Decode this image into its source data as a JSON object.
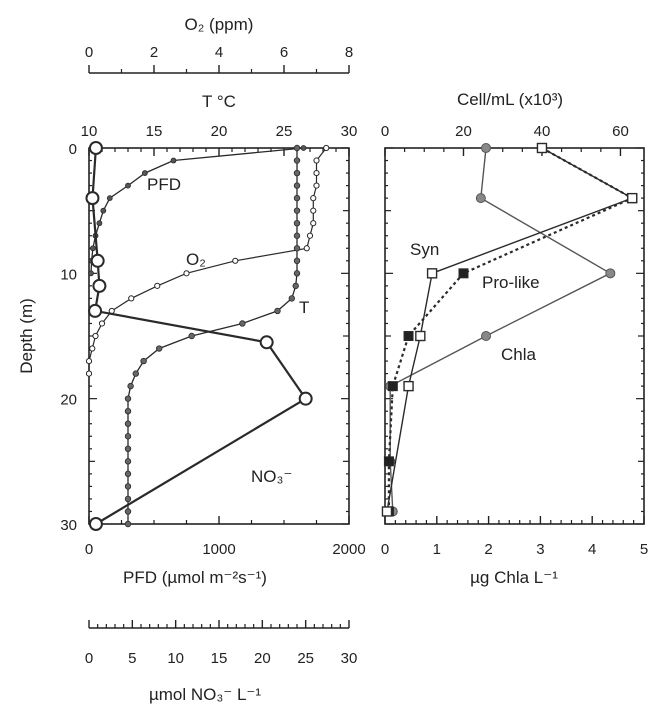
{
  "left_panel": {
    "axis_o2": {
      "label": "O₂ (ppm)",
      "ticks": [
        "0",
        "2",
        "4",
        "6",
        "8"
      ],
      "range": [
        0,
        8
      ]
    },
    "axis_t": {
      "label": "T °C",
      "ticks": [
        "10",
        "15",
        "20",
        "25",
        "30"
      ],
      "range": [
        10,
        30
      ]
    },
    "axis_pfd": {
      "label": "PFD (µmol m⁻²s⁻¹)",
      "ticks": [
        "0",
        "1000",
        "2000"
      ],
      "range": [
        0,
        2000
      ]
    },
    "axis_no3": {
      "label": "µmol NO₃⁻ L⁻¹",
      "ticks": [
        "0",
        "5",
        "10",
        "15",
        "20",
        "25",
        "30"
      ],
      "range": [
        0,
        30
      ]
    },
    "axis_depth": {
      "label": "Depth (m)",
      "ticks": [
        "0",
        "10",
        "20",
        "30"
      ],
      "range": [
        0,
        30
      ]
    },
    "annotations": {
      "pfd": "PFD",
      "o2": "O₂",
      "t": "T",
      "no3": "NO₃⁻"
    }
  },
  "right_panel": {
    "axis_cell": {
      "label": "Cell/mL (x10³)",
      "ticks": [
        "0",
        "20",
        "40",
        "60"
      ],
      "range": [
        0,
        66
      ]
    },
    "axis_chla": {
      "label": "µg Chla L⁻¹",
      "ticks": [
        "0",
        "1",
        "2",
        "3",
        "4",
        "5"
      ],
      "range": [
        0,
        5
      ]
    },
    "annotations": {
      "syn": "Syn",
      "pro": "Pro-like",
      "chla": "Chla"
    }
  },
  "chart_data": [
    {
      "type": "line",
      "y_axis": "Depth (m)",
      "y_range": [
        0,
        30
      ],
      "y_inverted": true,
      "series": [
        {
          "name": "PFD",
          "axis": "PFD (µmol m⁻²s⁻¹)",
          "color": "#2a2a2a",
          "x": [
            1650,
            650,
            430,
            300,
            160,
            110,
            80,
            50,
            30,
            20,
            15
          ],
          "y": [
            0,
            1,
            2,
            3,
            4,
            5,
            6,
            7,
            8,
            9,
            10
          ]
        },
        {
          "name": "O₂",
          "axis": "O₂ (ppm)",
          "color": "#2a2a2a",
          "x": [
            7.3,
            7.0,
            7.0,
            7.0,
            6.9,
            6.9,
            6.9,
            6.8,
            6.7,
            4.5,
            3.0,
            2.1,
            1.3,
            0.7,
            0.4,
            0.2,
            0.1,
            0.0,
            0.0
          ],
          "y": [
            0,
            1,
            2,
            3,
            4,
            5,
            6,
            7,
            8,
            9,
            10,
            11,
            12,
            13,
            14,
            15,
            16,
            17,
            18
          ]
        },
        {
          "name": "T",
          "axis": "T °C",
          "color": "#2a2a2a",
          "x": [
            26,
            26,
            26,
            26,
            26,
            26,
            26,
            26,
            26,
            26,
            26,
            25.9,
            25.6,
            24.5,
            21.8,
            17.9,
            15.4,
            14.2,
            13.6,
            13.2,
            13.0,
            13.0,
            13.0,
            13.0,
            13.0,
            13.0,
            13.0,
            13.0,
            13.0,
            13.0,
            13.0
          ],
          "y": [
            0,
            1,
            2,
            3,
            4,
            5,
            6,
            7,
            8,
            9,
            10,
            11,
            12,
            13,
            14,
            15,
            16,
            17,
            18,
            19,
            20,
            21,
            22,
            23,
            24,
            25,
            26,
            27,
            28,
            29,
            30
          ]
        },
        {
          "name": "NO₃⁻",
          "axis": "µmol NO₃⁻ L⁻¹",
          "color": "#2a2a2a",
          "x": [
            0.8,
            0.4,
            1.0,
            1.2,
            0.7,
            20.5,
            25.0,
            0.8
          ],
          "y": [
            0,
            4,
            9,
            11,
            13,
            15.5,
            20,
            30
          ]
        }
      ]
    },
    {
      "type": "line",
      "y_axis": "Depth (m)",
      "y_range": [
        0,
        30
      ],
      "y_inverted": true,
      "series": [
        {
          "name": "Syn",
          "axis": "Cell/mL (x10³)",
          "color": "#2a2a2a",
          "x": [
            40,
            63,
            12,
            9,
            6,
            0.5
          ],
          "y": [
            0,
            4,
            10,
            15,
            19,
            29
          ]
        },
        {
          "name": "Pro-like",
          "axis": "Cell/mL (x10³)",
          "color": "#2a2a2a",
          "x": [
            40,
            63,
            20,
            6,
            2,
            1,
            1
          ],
          "y": [
            0,
            4,
            10,
            15,
            19,
            25,
            29
          ]
        },
        {
          "name": "Chla",
          "axis": "µg Chla L⁻¹",
          "color": "#555555",
          "x": [
            1.95,
            1.85,
            4.35,
            1.95,
            0.1,
            0.1,
            0.15
          ],
          "y": [
            0,
            4,
            10,
            15,
            19,
            25,
            29
          ]
        }
      ]
    }
  ]
}
